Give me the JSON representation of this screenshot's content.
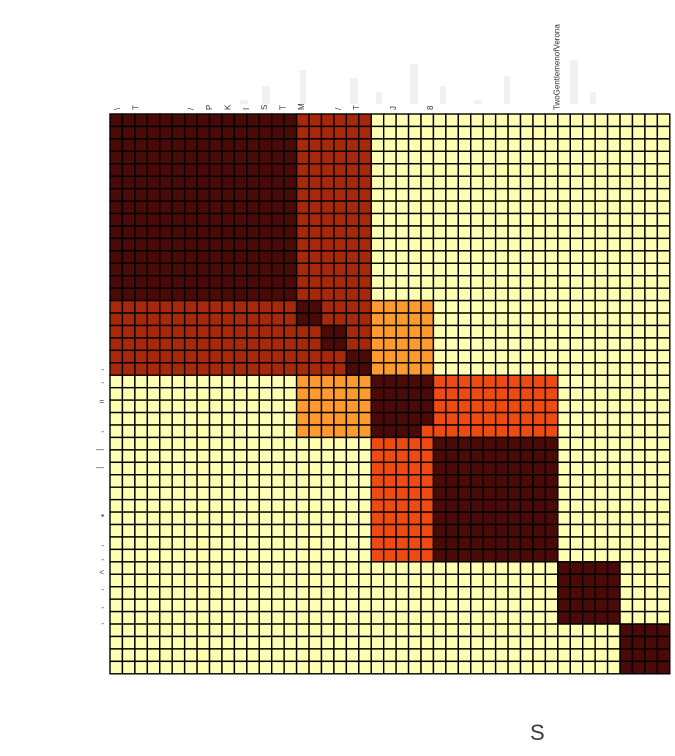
{
  "chart_data": {
    "type": "heatmap",
    "size": 45,
    "blocks": [
      [
        0,
        15
      ],
      [
        15,
        21
      ],
      [
        21,
        26
      ],
      [
        26,
        36
      ],
      [
        36,
        41
      ],
      [
        41,
        45
      ]
    ],
    "group_levels": [
      [
        4,
        3,
        0,
        0,
        0,
        0
      ],
      [
        3,
        4,
        1,
        0,
        0,
        0
      ],
      [
        0,
        1,
        4,
        2,
        0,
        0
      ],
      [
        0,
        0,
        2,
        4,
        0,
        0
      ],
      [
        0,
        0,
        0,
        0,
        4,
        0
      ],
      [
        0,
        0,
        0,
        0,
        0,
        4
      ]
    ],
    "sub_clusters": [
      [
        15,
        17
      ],
      [
        17,
        19
      ],
      [
        19,
        21
      ]
    ],
    "sub_cluster_levels": [
      [
        4,
        3,
        3
      ],
      [
        3,
        4,
        3
      ],
      [
        3,
        3,
        4
      ]
    ],
    "special_cells": [
      {
        "row": 25,
        "col": 25,
        "level": 2
      }
    ],
    "color_scale": [
      "#ffffb2",
      "#ff9a2e",
      "#ee4a12",
      "#a8280c",
      "#4a0a08"
    ],
    "col_labels": [
      "TwoGentlemenofVerona"
    ],
    "col_label_index": 35,
    "small_top_ticks": [
      "\\",
      "T",
      "",
      "",
      "/",
      "P",
      "K",
      "I",
      "S",
      "T",
      "M",
      "",
      "/",
      "T",
      "",
      "J",
      "",
      "8"
    ],
    "small_left_ticks": [
      "-",
      "-",
      "=",
      "-",
      "—",
      "—",
      "▪",
      "-",
      "-",
      "<",
      "-",
      "-",
      "-"
    ],
    "bottom_text": "S"
  }
}
